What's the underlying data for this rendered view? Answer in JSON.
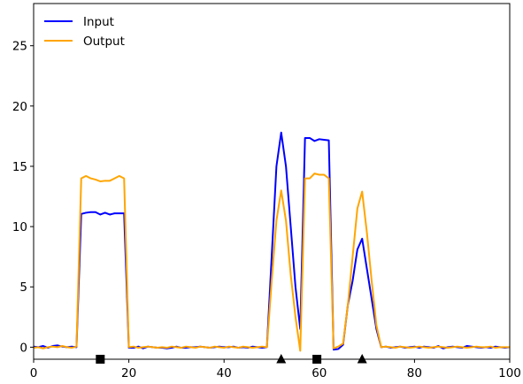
{
  "chart_data": {
    "type": "line",
    "title": "",
    "xlabel": "",
    "ylabel": "",
    "xlim": [
      0,
      100
    ],
    "ylim": [
      -1.0,
      28.5
    ],
    "xticks": [
      0,
      20,
      40,
      60,
      80,
      100
    ],
    "yticks": [
      0,
      5,
      10,
      15,
      20,
      25
    ],
    "grid": false,
    "legend": {
      "position": "top-left"
    },
    "series": [
      {
        "name": "Input",
        "color": "#0000ff",
        "x": [
          0,
          1,
          2,
          3,
          4,
          5,
          6,
          7,
          8,
          9,
          10,
          11,
          12,
          13,
          14,
          15,
          16,
          17,
          18,
          19,
          20,
          21,
          22,
          23,
          24,
          25,
          26,
          27,
          28,
          29,
          30,
          31,
          32,
          33,
          34,
          35,
          36,
          37,
          38,
          39,
          40,
          41,
          42,
          43,
          44,
          45,
          46,
          47,
          48,
          49,
          50,
          51,
          52,
          53,
          54,
          55,
          56,
          57,
          58,
          59,
          60,
          61,
          62,
          63,
          64,
          65,
          66,
          67,
          68,
          69,
          70,
          71,
          72,
          73,
          74,
          75,
          76,
          77,
          78,
          79,
          80,
          81,
          82,
          83,
          84,
          85,
          86,
          87,
          88,
          89,
          90,
          91,
          92,
          93,
          94,
          95,
          96,
          97,
          98,
          99,
          100
        ],
        "y": [
          0.05,
          0.0,
          0.1,
          -0.05,
          0.1,
          0.15,
          0.05,
          0.0,
          0.05,
          0.0,
          11.05,
          11.15,
          11.2,
          11.2,
          11.0,
          11.15,
          11.0,
          11.1,
          11.1,
          11.1,
          -0.05,
          -0.05,
          0.05,
          -0.1,
          0.05,
          0.0,
          -0.05,
          -0.05,
          -0.1,
          -0.05,
          0.05,
          -0.05,
          -0.05,
          0.0,
          0.0,
          0.05,
          0.0,
          -0.05,
          0.0,
          0.05,
          0.0,
          0.0,
          0.05,
          -0.05,
          0.0,
          -0.05,
          0.05,
          0.0,
          -0.05,
          0.0,
          7.5,
          15.0,
          17.8,
          15.0,
          10.0,
          5.0,
          1.5,
          17.35,
          17.35,
          17.1,
          17.25,
          17.2,
          17.15,
          -0.2,
          -0.15,
          0.2,
          3.5,
          5.5,
          8.1,
          9.0,
          6.5,
          4.0,
          1.5,
          0.0,
          0.05,
          -0.05,
          0.0,
          0.05,
          -0.05,
          0.0,
          0.05,
          -0.05,
          0.05,
          0.0,
          -0.05,
          0.1,
          -0.1,
          0.0,
          0.05,
          0.0,
          -0.05,
          0.1,
          0.05,
          0.0,
          -0.05,
          0.0,
          -0.05,
          0.05,
          0.0,
          -0.05,
          0.0
        ]
      },
      {
        "name": "Output",
        "color": "#ffa500",
        "x": [
          0,
          1,
          2,
          3,
          4,
          5,
          6,
          7,
          8,
          9,
          10,
          11,
          12,
          13,
          14,
          15,
          16,
          17,
          18,
          19,
          20,
          21,
          22,
          23,
          24,
          25,
          26,
          27,
          28,
          29,
          30,
          31,
          32,
          33,
          34,
          35,
          36,
          37,
          38,
          39,
          40,
          41,
          42,
          43,
          44,
          45,
          46,
          47,
          48,
          49,
          50,
          51,
          52,
          53,
          54,
          55,
          56,
          57,
          58,
          59,
          60,
          61,
          62,
          63,
          64,
          65,
          66,
          67,
          68,
          69,
          70,
          71,
          72,
          73,
          74,
          75,
          76,
          77,
          78,
          79,
          80,
          81,
          82,
          83,
          84,
          85,
          86,
          87,
          88,
          89,
          90,
          91,
          92,
          93,
          94,
          95,
          96,
          97,
          98,
          99,
          100
        ],
        "y": [
          -0.05,
          0.0,
          -0.1,
          0.0,
          0.05,
          0.0,
          0.1,
          0.0,
          -0.05,
          0.05,
          14.0,
          14.2,
          14.0,
          13.9,
          13.75,
          13.8,
          13.8,
          14.0,
          14.2,
          14.0,
          0.0,
          0.05,
          -0.05,
          0.0,
          0.05,
          0.0,
          -0.05,
          0.0,
          -0.05,
          0.05,
          0.0,
          -0.05,
          0.05,
          0.0,
          -0.05,
          0.05,
          0.0,
          -0.05,
          0.05,
          0.0,
          -0.05,
          0.05,
          0.0,
          -0.05,
          0.05,
          0.0,
          -0.05,
          0.0,
          0.05,
          0.0,
          5.5,
          10.5,
          13.0,
          10.5,
          6.0,
          2.5,
          -0.3,
          14.0,
          14.0,
          14.4,
          14.3,
          14.3,
          14.0,
          -0.1,
          0.05,
          0.3,
          3.5,
          7.5,
          11.5,
          12.9,
          9.5,
          5.5,
          1.8,
          0.0,
          0.05,
          0.0,
          -0.05,
          0.05,
          0.0,
          -0.05,
          0.0,
          0.05,
          0.0,
          -0.05,
          0.0,
          0.05,
          0.0,
          -0.05,
          0.0,
          0.05,
          0.0,
          -0.05,
          0.0,
          0.05,
          0.0,
          0.0,
          0.05,
          -0.05,
          0.0,
          0.0,
          0.0
        ]
      }
    ],
    "markers": [
      {
        "shape": "square",
        "x": 14,
        "y": -1.0,
        "color": "#000000"
      },
      {
        "shape": "triangle",
        "x": 52,
        "y": -1.0,
        "color": "#000000"
      },
      {
        "shape": "square",
        "x": 59.5,
        "y": -1.0,
        "color": "#000000"
      },
      {
        "shape": "triangle",
        "x": 69,
        "y": -1.0,
        "color": "#000000"
      }
    ]
  }
}
